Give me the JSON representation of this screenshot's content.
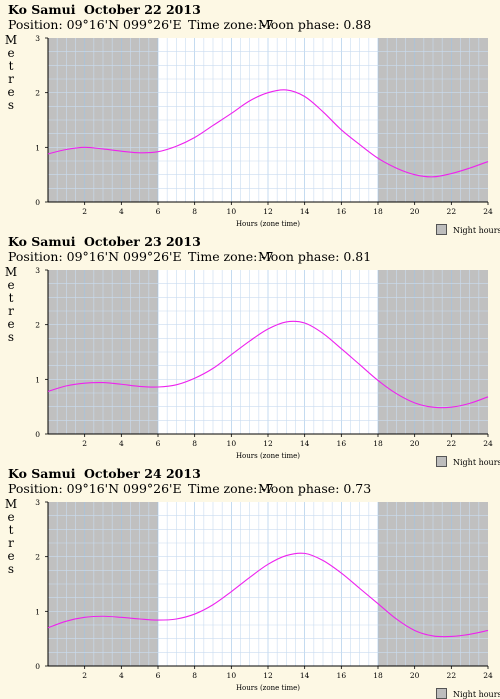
{
  "chart_data": [
    {
      "type": "line",
      "location": "Ko Samui",
      "date": "October 22 2013",
      "position": "Position: 09°16'N 099°26'E",
      "timezone": "Time zone: -7",
      "moon": "Moon phase: 0.88",
      "ylabel": "Metres",
      "xlabel": "Hours (zone time)",
      "legend": "Night hours",
      "xlim": [
        0,
        24
      ],
      "ylim": [
        0,
        3
      ],
      "xticks": [
        "2",
        "4",
        "6",
        "8",
        "10",
        "12",
        "14",
        "16",
        "18",
        "20",
        "22",
        "24"
      ],
      "yticks": [
        "0",
        "1",
        "2",
        "3"
      ],
      "night": [
        [
          0,
          6
        ],
        [
          18,
          24
        ]
      ],
      "series": [
        {
          "color": "#ee22ee",
          "x": [
            0,
            1,
            2,
            3,
            4,
            5,
            6,
            7,
            8,
            9,
            10,
            11,
            12,
            13,
            14,
            15,
            16,
            17,
            18,
            19,
            20,
            21,
            22,
            23,
            24
          ],
          "y": [
            0.88,
            0.96,
            1.0,
            0.97,
            0.93,
            0.9,
            0.92,
            1.02,
            1.18,
            1.4,
            1.62,
            1.85,
            2.0,
            2.05,
            1.93,
            1.65,
            1.32,
            1.05,
            0.8,
            0.62,
            0.5,
            0.46,
            0.52,
            0.62,
            0.74
          ]
        }
      ]
    },
    {
      "type": "line",
      "location": "Ko Samui",
      "date": "October 23 2013",
      "position": "Position: 09°16'N 099°26'E",
      "timezone": "Time zone: -7",
      "moon": "Moon phase: 0.81",
      "ylabel": "Metres",
      "xlabel": "Hours (zone time)",
      "legend": "Night hours",
      "xlim": [
        0,
        24
      ],
      "ylim": [
        0,
        3
      ],
      "xticks": [
        "2",
        "4",
        "6",
        "8",
        "10",
        "12",
        "14",
        "16",
        "18",
        "20",
        "22",
        "24"
      ],
      "yticks": [
        "0",
        "1",
        "2",
        "3"
      ],
      "night": [
        [
          0,
          6
        ],
        [
          18,
          24
        ]
      ],
      "series": [
        {
          "color": "#ee22ee",
          "x": [
            0,
            1,
            2,
            3,
            4,
            5,
            6,
            7,
            8,
            9,
            10,
            11,
            12,
            13,
            14,
            15,
            16,
            17,
            18,
            19,
            20,
            21,
            22,
            23,
            24
          ],
          "y": [
            0.78,
            0.88,
            0.93,
            0.94,
            0.91,
            0.87,
            0.86,
            0.9,
            1.02,
            1.2,
            1.45,
            1.7,
            1.92,
            2.05,
            2.03,
            1.84,
            1.56,
            1.27,
            0.98,
            0.74,
            0.57,
            0.49,
            0.49,
            0.56,
            0.68
          ]
        }
      ]
    },
    {
      "type": "line",
      "location": "Ko Samui",
      "date": "October 24 2013",
      "position": "Position: 09°16'N 099°26'E",
      "timezone": "Time zone: -7",
      "moon": "Moon phase: 0.73",
      "ylabel": "Metres",
      "xlabel": "Hours (zone time)",
      "legend": "Night hours",
      "xlim": [
        0,
        24
      ],
      "ylim": [
        0,
        3
      ],
      "xticks": [
        "2",
        "4",
        "6",
        "8",
        "10",
        "12",
        "14",
        "16",
        "18",
        "20",
        "22",
        "24"
      ],
      "yticks": [
        "0",
        "1",
        "2",
        "3"
      ],
      "night": [
        [
          0,
          6
        ],
        [
          18,
          24
        ]
      ],
      "series": [
        {
          "color": "#ee22ee",
          "x": [
            0,
            1,
            2,
            3,
            4,
            5,
            6,
            7,
            8,
            9,
            10,
            11,
            12,
            13,
            14,
            15,
            16,
            17,
            18,
            19,
            20,
            21,
            22,
            23,
            24
          ],
          "y": [
            0.7,
            0.82,
            0.89,
            0.91,
            0.89,
            0.86,
            0.84,
            0.86,
            0.95,
            1.12,
            1.36,
            1.62,
            1.86,
            2.02,
            2.06,
            1.93,
            1.7,
            1.42,
            1.14,
            0.86,
            0.65,
            0.55,
            0.54,
            0.58,
            0.65
          ]
        }
      ]
    }
  ]
}
